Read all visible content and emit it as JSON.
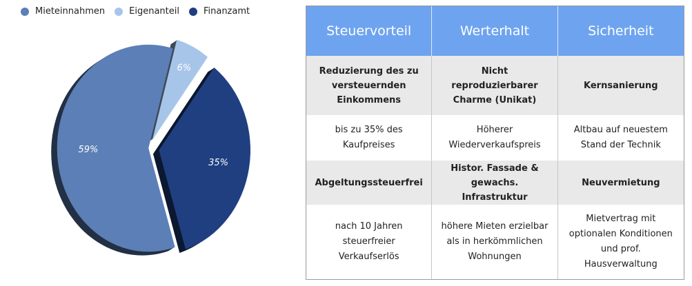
{
  "chart_data": {
    "type": "pie",
    "legend_position": "top-left",
    "series": [
      {
        "name": "Mieteinnahmen",
        "value": 59,
        "label": "59%",
        "color": "#5b7fb6"
      },
      {
        "name": "Eigenanteil",
        "value": 6,
        "label": "6%",
        "color": "#a7c5e8"
      },
      {
        "name": "Finanzamt",
        "value": 35,
        "label": "35%",
        "color": "#1f3f80"
      }
    ]
  },
  "table": {
    "headers": [
      "Steuervorteil",
      "Werterhalt",
      "Sicherheit"
    ],
    "rows": [
      {
        "style": "band",
        "cells": [
          "Reduzierung des zu versteuernden Einkommens",
          "Nicht reproduzierbarer Charme (Unikat)",
          "Kernsanierung"
        ]
      },
      {
        "style": "plain",
        "cells": [
          "bis zu 35% des Kaufpreises",
          "Höherer Wiederverkaufspreis",
          "Altbau auf neuestem Stand der Technik"
        ]
      },
      {
        "style": "band",
        "cells": [
          "Abgeltungssteuerfrei",
          "Histor. Fassade & gewachs. Infrastruktur",
          "Neuvermietung"
        ]
      },
      {
        "style": "plain",
        "cells": [
          "nach 10 Jahren steuerfreier Verkaufserlös",
          "höhere Mieten erzielbar als in herkömmlichen Wohnungen",
          "Mietvertrag mit optionalen Konditionen und prof. Hausverwaltung"
        ]
      }
    ]
  }
}
